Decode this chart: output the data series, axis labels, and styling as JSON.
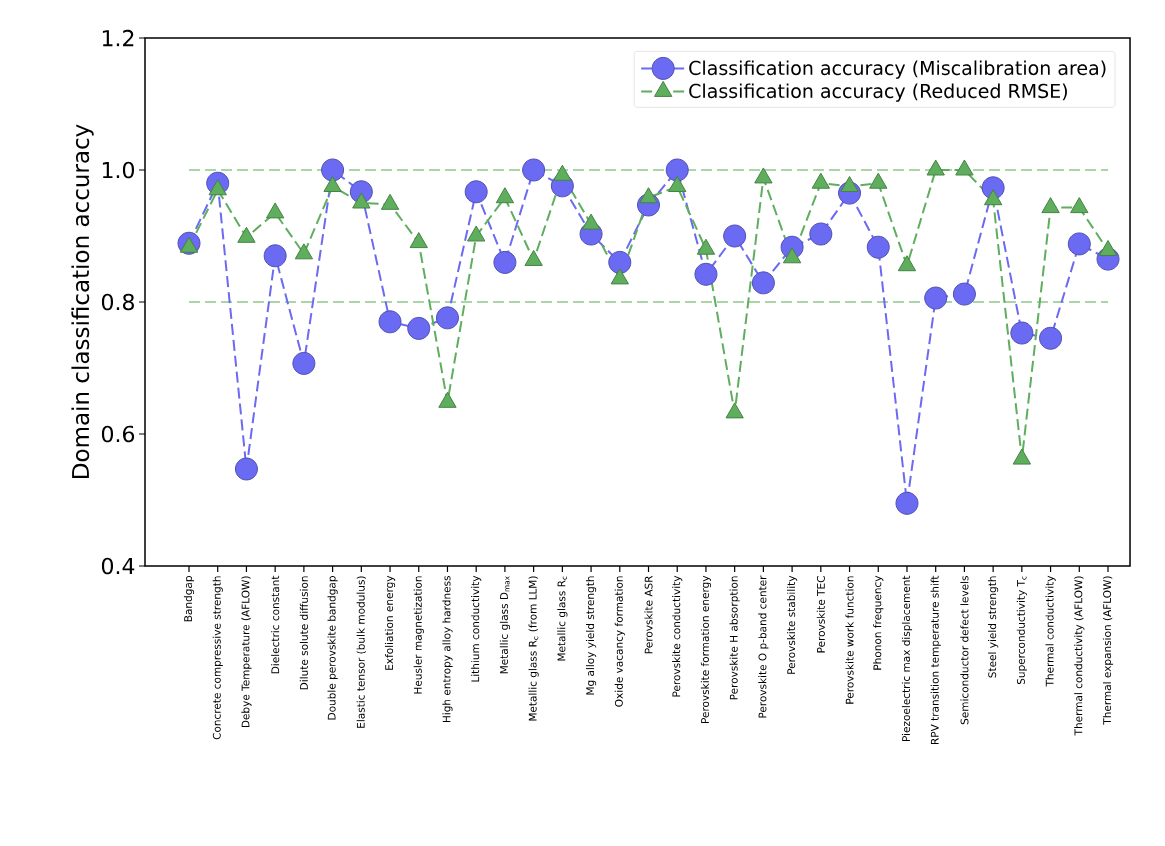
{
  "chart_data": {
    "type": "line",
    "ylabel": "Domain classification accuracy",
    "categories": [
      "Bandgap",
      "Concrete compressive strength",
      "Debye Temperature (AFLOW)",
      "Dielectric constant",
      "Dilute solute diffusion",
      "Double perovskite bandgap",
      "Elastic tensor (bulk modulus)",
      "Exfoliation energy",
      "Heusler magnetization",
      "High entropy alloy hardness",
      "Lithium conductivity",
      "Metallic glass D$_{max}$",
      "Metallic glass R$_{c}$ (from LLM)",
      "Metallic glass R$_{c}$",
      "Mg alloy yield strength",
      "Oxide vacancy formation",
      "Perovskite ASR",
      "Perovskite conductivity",
      "Perovskite formation energy",
      "Perovskite H absorption",
      "Perovskite O p-band center",
      "Perovskite stability",
      "Perovskite TEC",
      "Perovskite work function",
      "Phonon frequency",
      "Piezoelectric max displacement",
      "RPV transition temperature shift",
      "Semiconductor defect levels",
      "Steel yield strength",
      "Superconductivity T$_{c}$",
      "Thermal conductivity",
      "Thermal conductivity (AFLOW)",
      "Thermal expansion (AFLOW)"
    ],
    "series": [
      {
        "name": "Classification accuracy (Miscalibration area)",
        "color": "#6a6af2",
        "marker": "circle",
        "line_style": "dashed",
        "values": [
          0.889,
          0.98,
          0.547,
          0.87,
          0.707,
          1.0,
          0.967,
          0.77,
          0.76,
          0.776,
          0.967,
          0.86,
          1.0,
          0.976,
          0.903,
          0.86,
          0.947,
          1.0,
          0.842,
          0.9,
          0.829,
          0.883,
          0.903,
          0.965,
          0.883,
          0.495,
          0.806,
          0.812,
          0.973,
          0.753,
          0.745,
          0.888,
          0.865
        ]
      },
      {
        "name": "Classification accuracy (Reduced RMSE)",
        "color": "#5eae5e",
        "marker": "triangle",
        "line_style": "dashed",
        "values": [
          0.883,
          0.97,
          0.898,
          0.935,
          0.873,
          0.975,
          0.95,
          0.948,
          0.89,
          0.648,
          0.9,
          0.958,
          0.863,
          0.992,
          0.918,
          0.835,
          0.958,
          0.975,
          0.88,
          0.632,
          0.988,
          0.867,
          0.98,
          0.975,
          0.98,
          0.855,
          1.0,
          1.0,
          0.955,
          0.562,
          0.943,
          0.943,
          0.878
        ]
      }
    ],
    "ylim": [
      0.4,
      1.2
    ],
    "yticks": [
      0.4,
      0.6,
      0.8,
      {
        "value": 1.0,
        "label": "1.0"
      },
      1.2
    ],
    "ref_lines": [
      {
        "axis": "y",
        "value": 0.8,
        "color": "#a9d5a9",
        "line_style": "dashed"
      },
      {
        "axis": "y",
        "value": 1.0,
        "color": "#a9d5a9",
        "line_style": "dashed"
      }
    ],
    "grid": false,
    "legend": "top right"
  }
}
